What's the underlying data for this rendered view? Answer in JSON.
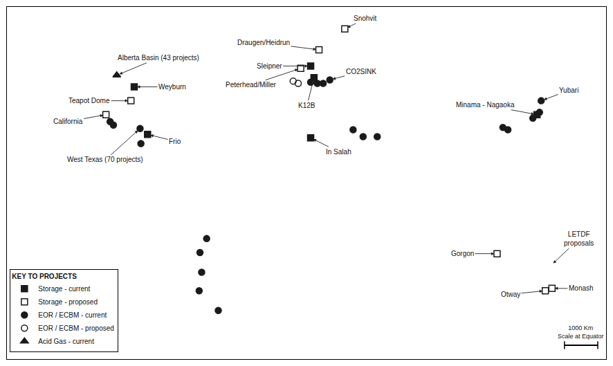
{
  "chart_data": {
    "type": "scatter",
    "xlim": [
      -180,
      180
    ],
    "ylim": [
      -68,
      84
    ],
    "grid": false,
    "tick_labels": false,
    "legend": "lower left",
    "legend_title": "KEY TO PROJECTS",
    "series": [
      {
        "name": "Storage - current",
        "color": "#1a1a1a",
        "marker": "square",
        "x": [
          2.5,
          4.5,
          -103.5,
          -95.5,
          2.5,
          138.5
        ],
        "values": [
          58.5,
          53.5,
          49.5,
          29.0,
          27.5,
          37.5
        ]
      },
      {
        "name": "Storage - proposed",
        "color": "#1a1a1a",
        "marker": "square-open",
        "x": [
          23.0,
          7.5,
          -3.5,
          -105.5,
          -120.5,
          114.5,
          143.5,
          147.5
        ],
        "values": [
          74.5,
          65.5,
          57.5,
          43.5,
          37.5,
          -22.5,
          -38.5,
          -37.5
        ]
      },
      {
        "name": "EOR / ECBM - current",
        "color": "#1a1a1a",
        "marker": "circle",
        "x": [
          -118.0,
          -116.0,
          -99.5,
          -60.0,
          -64.0,
          -63.0,
          -64.5,
          -53.0,
          2.5,
          6.5,
          10.0,
          28.0,
          34.0,
          42.5,
          118.0,
          121.0,
          136.0,
          140.0,
          14.0,
          -100.0,
          141.0
        ],
        "values": [
          34.5,
          33.0,
          25.0,
          -16.0,
          -22.0,
          -30.5,
          -38.5,
          -47.0,
          51.5,
          51.0,
          51.0,
          31.0,
          28.0,
          28.0,
          32.0,
          31.0,
          36.0,
          38.5,
          52.5,
          31.5,
          43.5
        ]
      },
      {
        "name": "EOR / ECBM - proposed",
        "color": "#1a1a1a",
        "marker": "circle-open",
        "x": [
          -8.0,
          -5.0
        ],
        "values": [
          52.0,
          51.0
        ]
      },
      {
        "name": "Acid Gas - current",
        "color": "#1a1a1a",
        "marker": "triangle-up",
        "x": [
          -114.0
        ],
        "values": [
          54.5
        ]
      }
    ],
    "annotations": [
      {
        "text": "Snohvit",
        "x": 23.0,
        "y": 74.5
      },
      {
        "text": "Draugen/Heidrun",
        "x": 7.5,
        "y": 65.5
      },
      {
        "text": "Sleipner",
        "x": 2.5,
        "y": 58.5
      },
      {
        "text": "Peterhead/Miller",
        "x": -3.5,
        "y": 57.5
      },
      {
        "text": "CO2SINK",
        "x": 14.0,
        "y": 52.5
      },
      {
        "text": "K12B",
        "x": 4.5,
        "y": 53.5
      },
      {
        "text": "Alberta Basin (43 projects)",
        "x": -114.0,
        "y": 54.5
      },
      {
        "text": "Weyburn",
        "x": -103.5,
        "y": 49.5
      },
      {
        "text": "Teapot Dome",
        "x": -105.5,
        "y": 43.5
      },
      {
        "text": "California",
        "x": -120.5,
        "y": 37.5
      },
      {
        "text": "West Texas (70 projects)",
        "x": -100.0,
        "y": 31.5
      },
      {
        "text": "Frio",
        "x": -95.5,
        "y": 29.0
      },
      {
        "text": "In Salah",
        "x": 2.5,
        "y": 27.5
      },
      {
        "text": "Minama - Nagaoka",
        "x": 138.5,
        "y": 37.5
      },
      {
        "text": "Yubari",
        "x": 141.0,
        "y": 43.5
      },
      {
        "text": "Gorgon",
        "x": 114.5,
        "y": -22.5
      },
      {
        "text": "Otway",
        "x": 143.5,
        "y": -38.5
      },
      {
        "text": "Monash",
        "x": 147.5,
        "y": -37.5
      },
      {
        "text": "LETDF\nproposals",
        "x": 147.0,
        "y": -27.5
      }
    ],
    "scale_bar": {
      "text": "1000 Km\nScale at Equator",
      "x": [
        155.0,
        175.0
      ],
      "y": -62.0
    }
  }
}
